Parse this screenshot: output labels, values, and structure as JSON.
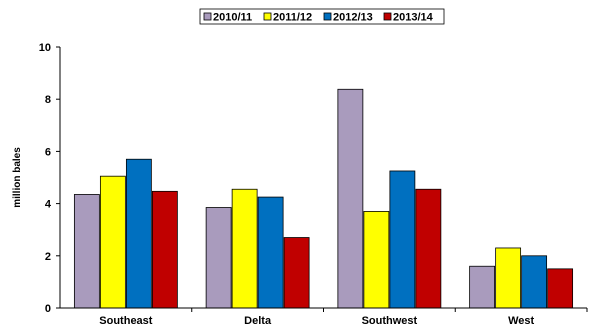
{
  "chart_data": {
    "type": "bar",
    "categories": [
      "Southeast",
      "Delta",
      "Southwest",
      "West"
    ],
    "series": [
      {
        "name": "2010/11",
        "color": "#a99bbd",
        "values": [
          4.35,
          3.85,
          8.38,
          1.6
        ]
      },
      {
        "name": "2011/12",
        "color": "#ffff00",
        "values": [
          5.05,
          4.55,
          3.7,
          2.3
        ]
      },
      {
        "name": "2012/13",
        "color": "#0070c0",
        "values": [
          5.7,
          4.25,
          5.25,
          2.0
        ]
      },
      {
        "name": "2013/14",
        "color": "#c00000",
        "values": [
          4.47,
          2.7,
          4.55,
          1.5
        ]
      }
    ],
    "xlabel": "",
    "ylabel": "million bales",
    "ylim": [
      0,
      10
    ],
    "yticks": [
      "0",
      "2",
      "4",
      "6",
      "8",
      "10"
    ],
    "grid": false,
    "legend_position": "top"
  }
}
